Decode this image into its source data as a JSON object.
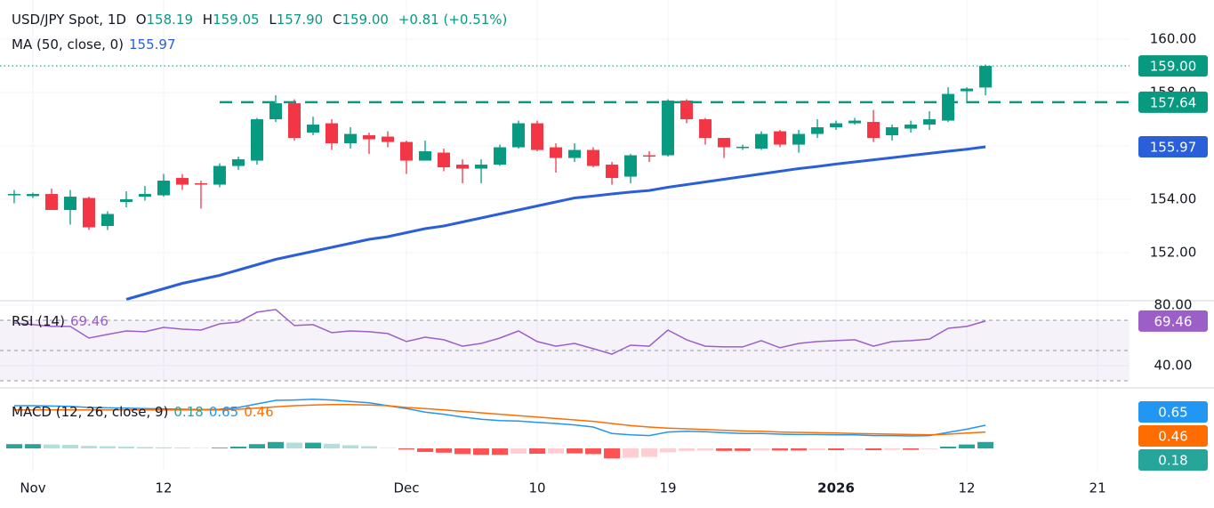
{
  "header": {
    "title": "USD/JPY Spot, 1D",
    "ohlc": [
      {
        "key": "O",
        "text": "158.19"
      },
      {
        "key": "H",
        "text": "159.05"
      },
      {
        "key": "L",
        "text": "157.90"
      },
      {
        "key": "C",
        "text": "159.00"
      }
    ],
    "change": "+0.81 (+0.51%)"
  },
  "chart_data": [
    {
      "type": "candlestick",
      "up_color": "#089981",
      "down_color": "#f23645",
      "grid": true,
      "x": [
        -1,
        0,
        1,
        2,
        3,
        4,
        5,
        6,
        7,
        8,
        9,
        10,
        11,
        12,
        13,
        14,
        15,
        16,
        17,
        18,
        19,
        20,
        21,
        22,
        23,
        24,
        25,
        26,
        27,
        28,
        29,
        30,
        31,
        32,
        33,
        34,
        35,
        36,
        37,
        38,
        39,
        40,
        41,
        42,
        43,
        44,
        45,
        46,
        47,
        48,
        49,
        50,
        51
      ],
      "open": [
        154.15,
        154.12,
        154.2,
        153.6,
        154.05,
        153.0,
        153.9,
        154.1,
        154.15,
        154.8,
        154.6,
        154.55,
        155.25,
        155.45,
        157.0,
        157.6,
        156.5,
        156.85,
        156.1,
        156.4,
        156.35,
        156.15,
        155.45,
        155.75,
        155.3,
        155.15,
        155.3,
        155.95,
        156.85,
        155.95,
        155.55,
        155.85,
        155.3,
        154.85,
        155.65,
        155.65,
        157.7,
        157.0,
        156.3,
        155.93,
        155.9,
        156.55,
        156.05,
        156.45,
        156.7,
        156.85,
        156.9,
        156.4,
        156.65,
        156.8,
        156.95,
        158.05,
        158.19
      ],
      "high": [
        154.35,
        154.25,
        154.4,
        154.35,
        154.1,
        153.55,
        154.3,
        154.5,
        154.95,
        154.95,
        154.7,
        155.35,
        155.6,
        157.05,
        157.9,
        157.75,
        157.1,
        157.0,
        156.7,
        156.5,
        156.55,
        156.2,
        156.2,
        155.9,
        155.5,
        155.5,
        156.05,
        156.95,
        156.95,
        156.1,
        156.1,
        155.95,
        155.4,
        155.7,
        155.8,
        157.75,
        157.75,
        157.05,
        156.3,
        156.05,
        156.55,
        156.6,
        156.6,
        157.0,
        156.95,
        157.05,
        157.35,
        156.8,
        156.95,
        157.3,
        158.2,
        158.2,
        159.05
      ],
      "low": [
        153.85,
        154.05,
        153.6,
        153.05,
        152.85,
        152.85,
        153.7,
        153.95,
        154.1,
        154.35,
        153.65,
        154.45,
        155.1,
        155.3,
        156.9,
        156.2,
        156.4,
        155.85,
        155.9,
        155.7,
        155.95,
        154.95,
        155.45,
        155.05,
        154.6,
        154.6,
        155.25,
        155.9,
        155.8,
        155.0,
        155.4,
        155.2,
        154.55,
        154.6,
        155.4,
        155.6,
        156.85,
        156.05,
        155.55,
        155.85,
        155.85,
        155.95,
        155.75,
        156.3,
        156.6,
        156.8,
        156.15,
        156.2,
        156.5,
        156.6,
        156.9,
        157.6,
        157.9
      ],
      "close": [
        154.2,
        154.2,
        153.6,
        154.1,
        152.95,
        153.45,
        154.0,
        154.2,
        154.7,
        154.55,
        154.55,
        155.25,
        155.5,
        157.0,
        157.6,
        156.3,
        156.8,
        156.1,
        156.45,
        156.25,
        156.15,
        155.45,
        155.8,
        155.2,
        155.15,
        155.3,
        155.95,
        156.85,
        155.85,
        155.55,
        155.85,
        155.25,
        154.8,
        155.65,
        155.6,
        157.7,
        157.0,
        156.3,
        155.95,
        155.97,
        156.45,
        156.05,
        156.45,
        156.7,
        156.85,
        156.95,
        156.3,
        156.7,
        156.8,
        157.0,
        157.95,
        158.15,
        159.0
      ],
      "series": [
        {
          "name": "MA (50, close, 0)",
          "value_label": "155.97",
          "color": "#2b5fd9",
          "values": [
            null,
            null,
            null,
            null,
            null,
            null,
            150.25,
            150.45,
            150.65,
            150.85,
            151.0,
            151.15,
            151.35,
            151.55,
            151.75,
            151.9,
            152.05,
            152.2,
            152.35,
            152.5,
            152.6,
            152.75,
            152.9,
            153.0,
            153.15,
            153.3,
            153.45,
            153.6,
            153.75,
            153.9,
            154.05,
            154.12,
            154.2,
            154.27,
            154.33,
            154.45,
            154.55,
            154.65,
            154.75,
            154.85,
            154.95,
            155.05,
            155.15,
            155.23,
            155.32,
            155.4,
            155.48,
            155.56,
            155.64,
            155.72,
            155.8,
            155.88,
            155.97
          ]
        }
      ],
      "price_lines": [
        {
          "value": 159.0,
          "label": "159.00",
          "color": "#089981",
          "style": "dotted"
        },
        {
          "value": 157.64,
          "label": "157.64",
          "color": "#089981",
          "style": "dashed",
          "start_x": 10
        }
      ],
      "xlim": [
        -1.76,
        58.71
      ],
      "xticks": [
        {
          "value": 0,
          "label": "Nov"
        },
        {
          "value": 7,
          "label": "12"
        },
        {
          "value": 20,
          "label": "Dec"
        },
        {
          "value": 27,
          "label": "10"
        },
        {
          "value": 34,
          "label": "19"
        },
        {
          "value": 43,
          "label": "2026",
          "bold": true
        },
        {
          "value": 50,
          "label": "12"
        },
        {
          "value": 57,
          "label": "21"
        }
      ],
      "ylim": [
        150.2,
        161.47
      ],
      "yticks": [
        {
          "value": 152,
          "label": "152.00"
        },
        {
          "value": 154,
          "label": "154.00"
        },
        {
          "value": 156,
          "label": "156.00"
        },
        {
          "value": 158,
          "label": "158.00"
        },
        {
          "value": 160,
          "label": "160.00"
        }
      ]
    },
    {
      "type": "line",
      "grid": true,
      "series": [
        {
          "name": "RSI (14)",
          "value_label": "69.46",
          "color": "#9c5fc8",
          "values": [
            68.2,
            67.1,
            65.9,
            65.9,
            58.2,
            60.6,
            62.9,
            62.4,
            65.3,
            64.1,
            63.5,
            67.6,
            68.8,
            75.3,
            77.1,
            66.5,
            67.1,
            61.8,
            62.9,
            62.4,
            61.2,
            55.9,
            58.8,
            57.1,
            52.9,
            54.7,
            58.2,
            62.9,
            55.9,
            52.9,
            54.7,
            51.2,
            47.6,
            53.5,
            52.9,
            63.5,
            57.1,
            52.9,
            52.4,
            52.4,
            56.5,
            51.8,
            54.7,
            55.9,
            56.5,
            57.1,
            52.9,
            55.9,
            56.5,
            57.6,
            64.7,
            65.9,
            69.46
          ]
        }
      ],
      "levels": [
        30,
        50,
        70
      ],
      "level_color": "#9598a1",
      "band_color": "#7e57c2",
      "ylim": [
        25.9,
        82.9
      ],
      "yticks": [
        {
          "value": 40,
          "label": "40.00"
        },
        {
          "value": 80,
          "label": "80.00"
        }
      ]
    },
    {
      "type": "macd",
      "title": "MACD (12, 26, close, 9)",
      "histogram": {
        "value_label": "0.18",
        "badge_color": "#26a69a",
        "colors": {
          "up_rising": "#26a69a",
          "up_falling": "#b2dfdb",
          "down_falling": "#ff5252",
          "down_rising": "#ffcdd2"
        },
        "values": [
          0.12,
          0.12,
          0.11,
          0.1,
          0.07,
          0.06,
          0.05,
          0.04,
          0.03,
          0.02,
          0.01,
          0.02,
          0.05,
          0.12,
          0.18,
          0.16,
          0.16,
          0.13,
          0.09,
          0.06,
          0.01,
          -0.03,
          -0.1,
          -0.12,
          -0.16,
          -0.18,
          -0.18,
          -0.15,
          -0.15,
          -0.14,
          -0.14,
          -0.16,
          -0.28,
          -0.26,
          -0.24,
          -0.11,
          -0.07,
          -0.06,
          -0.07,
          -0.07,
          -0.06,
          -0.06,
          -0.06,
          -0.05,
          -0.05,
          -0.04,
          -0.05,
          -0.04,
          -0.04,
          -0.02,
          0.05,
          0.11,
          0.18
        ]
      },
      "series": [
        {
          "value_label": "0.65",
          "color": "#2196f3",
          "values": [
            1.2,
            1.2,
            1.19,
            1.18,
            1.15,
            1.14,
            1.13,
            1.12,
            1.11,
            1.1,
            1.09,
            1.1,
            1.15,
            1.25,
            1.35,
            1.36,
            1.38,
            1.36,
            1.32,
            1.28,
            1.2,
            1.12,
            1.02,
            0.96,
            0.88,
            0.82,
            0.78,
            0.77,
            0.73,
            0.7,
            0.66,
            0.6,
            0.42,
            0.38,
            0.36,
            0.46,
            0.48,
            0.47,
            0.44,
            0.42,
            0.42,
            0.4,
            0.39,
            0.39,
            0.38,
            0.38,
            0.36,
            0.36,
            0.35,
            0.36,
            0.45,
            0.54,
            0.65
          ]
        },
        {
          "value_label": "0.46",
          "color": "#ff6d00",
          "values": [
            1.08,
            1.08,
            1.08,
            1.08,
            1.08,
            1.08,
            1.08,
            1.08,
            1.08,
            1.08,
            1.08,
            1.08,
            1.1,
            1.13,
            1.17,
            1.2,
            1.22,
            1.23,
            1.23,
            1.22,
            1.2,
            1.15,
            1.12,
            1.08,
            1.04,
            1.0,
            0.96,
            0.92,
            0.88,
            0.84,
            0.8,
            0.76,
            0.7,
            0.64,
            0.6,
            0.57,
            0.55,
            0.53,
            0.51,
            0.49,
            0.48,
            0.46,
            0.45,
            0.44,
            0.43,
            0.42,
            0.41,
            0.4,
            0.39,
            0.38,
            0.4,
            0.43,
            0.46
          ]
        }
      ],
      "ylim": [
        -0.65,
        1.675
      ]
    }
  ]
}
